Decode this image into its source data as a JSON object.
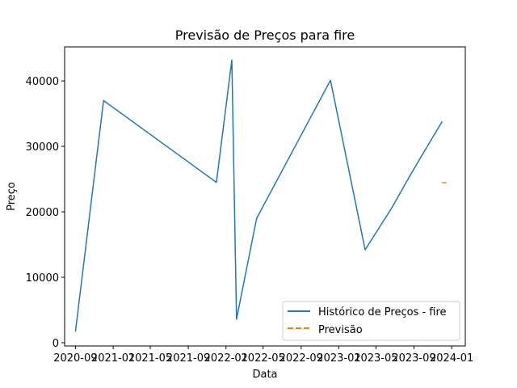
{
  "chart_data": {
    "type": "line",
    "title": "Previsão de Preços para fire",
    "xlabel": "Data",
    "ylabel": "Preço",
    "x_ticks": [
      "2020-09",
      "2021-01",
      "2021-05",
      "2021-09",
      "2022-01",
      "2022-05",
      "2022-09",
      "2023-01",
      "2023-05",
      "2023-09",
      "2024-01"
    ],
    "y_ticks": [
      0,
      10000,
      20000,
      30000,
      40000
    ],
    "xlim": [
      "2020-07-28",
      "2024-02-14"
    ],
    "ylim": [
      -500,
      45200
    ],
    "grid": false,
    "legend_position": "lower right",
    "series": [
      {
        "name": "Histórico de Preços - fire",
        "color": "#1f77b4",
        "style": "solid",
        "x": [
          "2020-09-01",
          "2020-12-01",
          "2021-12-01",
          "2022-01-20",
          "2022-02-04",
          "2022-04-10",
          "2022-12-05",
          "2023-03-27",
          "2023-06-20",
          "2023-08-25",
          "2023-12-01"
        ],
        "y": [
          1700,
          37000,
          24500,
          43200,
          3600,
          19000,
          40100,
          14200,
          20500,
          26000,
          33800
        ]
      },
      {
        "name": "Previsão",
        "color": "#ff7f0e",
        "style": "dashed",
        "x": [
          "2023-12-01",
          "2023-12-15"
        ],
        "y": [
          24500,
          24400
        ]
      }
    ]
  }
}
